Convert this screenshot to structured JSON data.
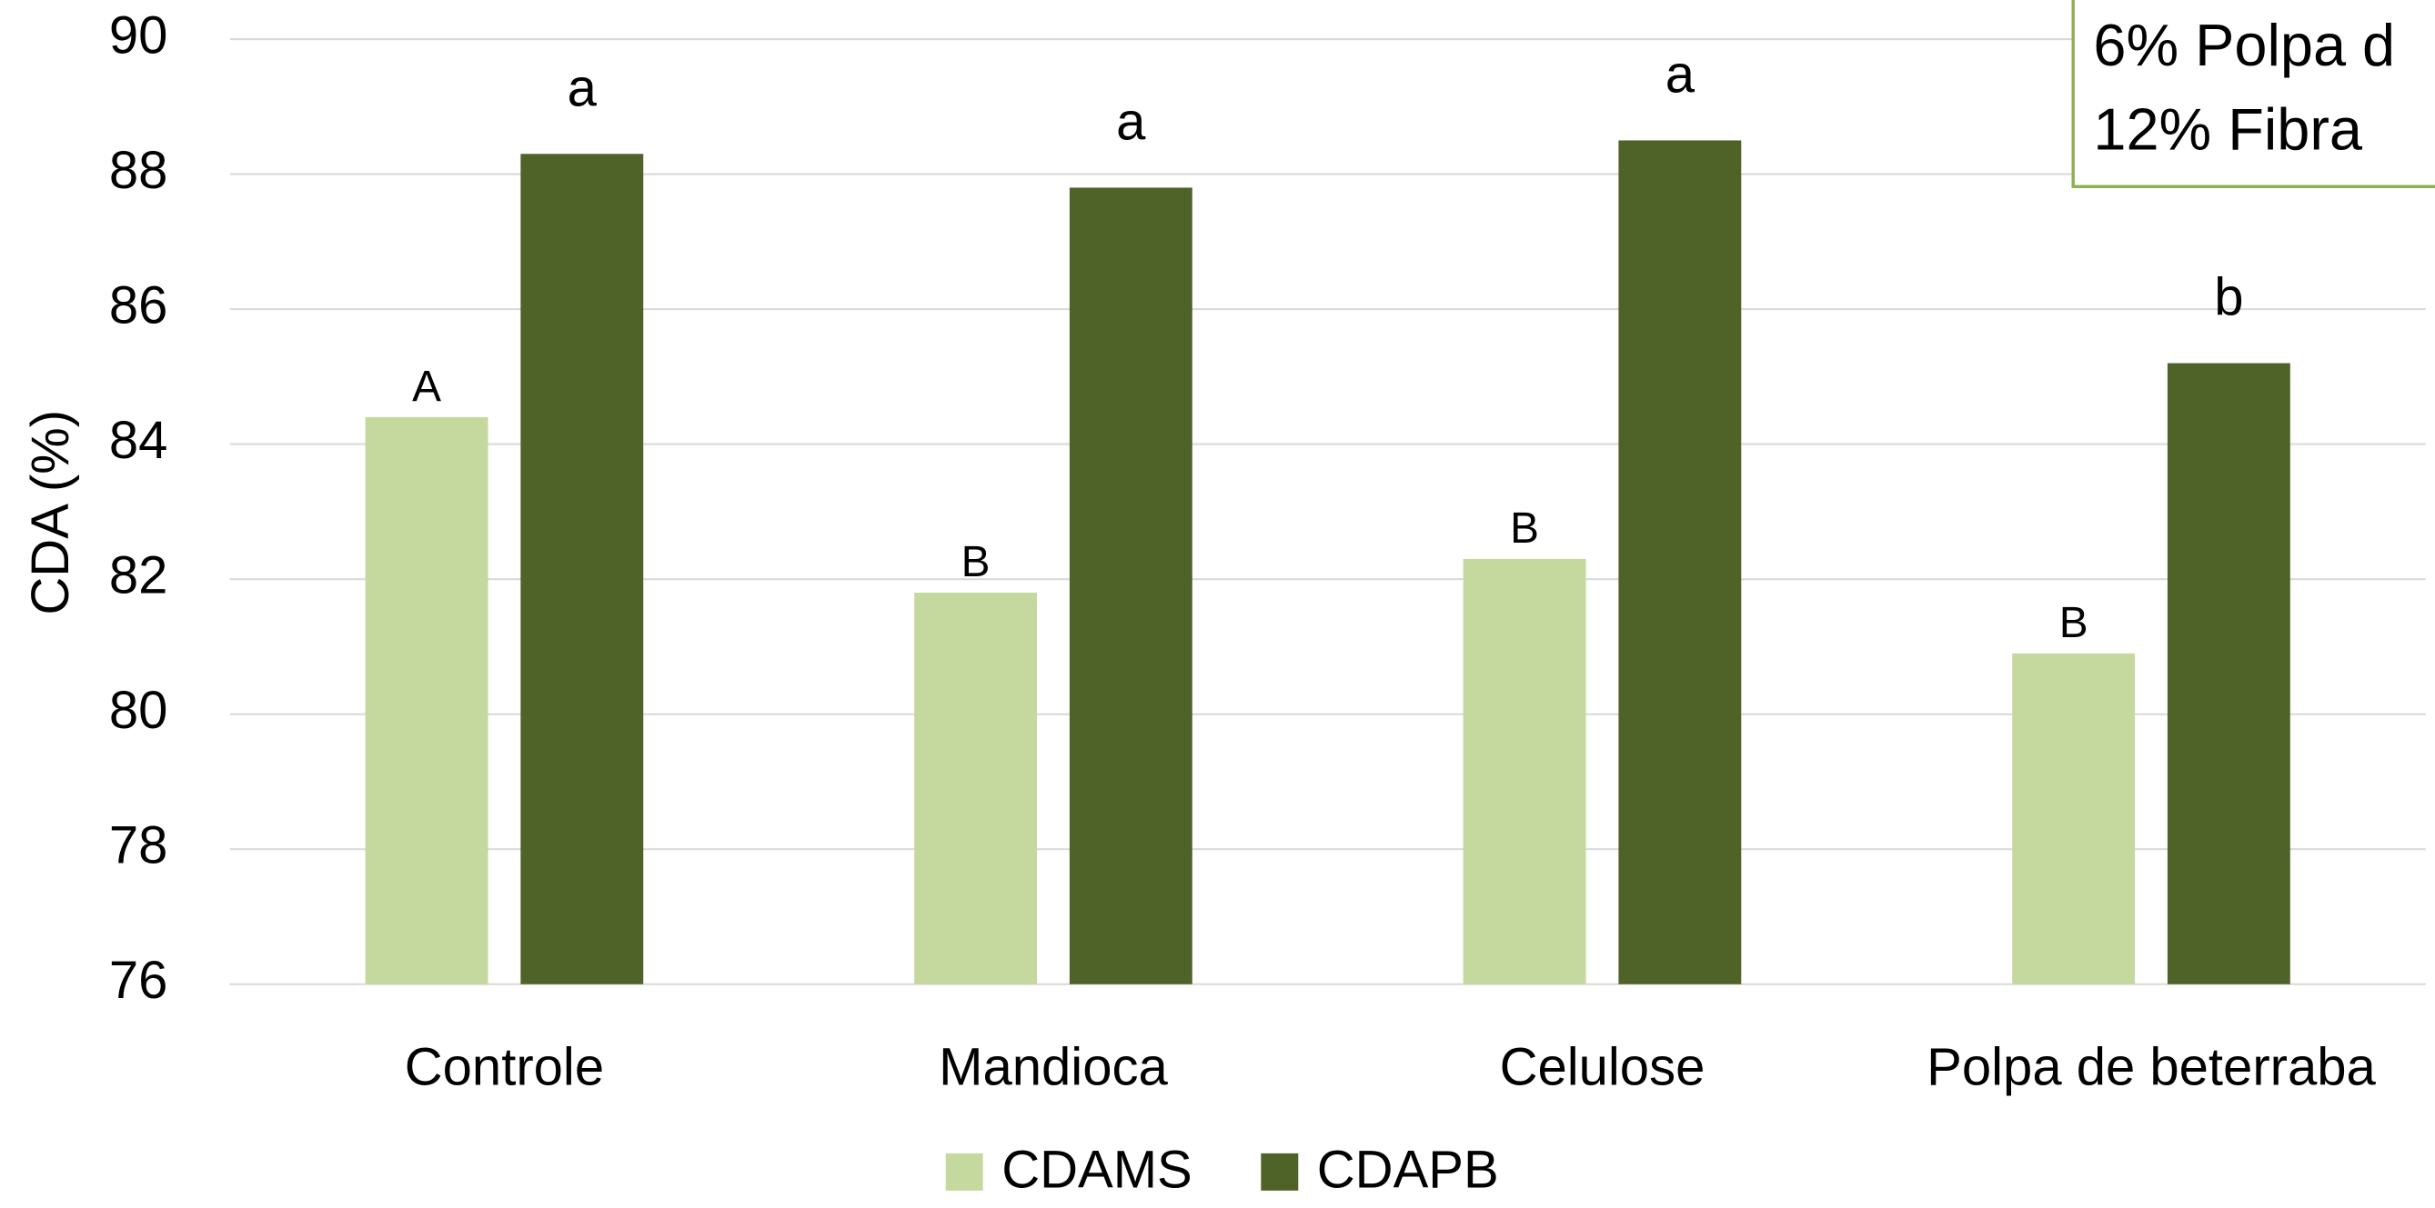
{
  "chart_data": {
    "type": "bar",
    "y_label": "CDA (%)",
    "categories": [
      "Controle",
      "Mandioca",
      "Celulose",
      "Polpa de beterraba"
    ],
    "series": [
      {
        "name": "CDAMS",
        "color": "#c5d89d",
        "values": [
          84.4,
          81.8,
          82.3,
          80.9
        ],
        "letters": [
          "A",
          "B",
          "B",
          "B"
        ]
      },
      {
        "name": "CDAPB",
        "color": "#4f6228",
        "values": [
          88.3,
          87.8,
          88.5,
          85.2
        ],
        "letters": [
          "a",
          "a",
          "a",
          "b"
        ]
      }
    ],
    "ylim": [
      76,
      90
    ],
    "yticks": [
      76,
      78,
      80,
      82,
      84,
      86,
      88,
      90
    ],
    "grid": true,
    "text_box": [
      "6% Polpa d",
      "12% Fibra"
    ]
  }
}
